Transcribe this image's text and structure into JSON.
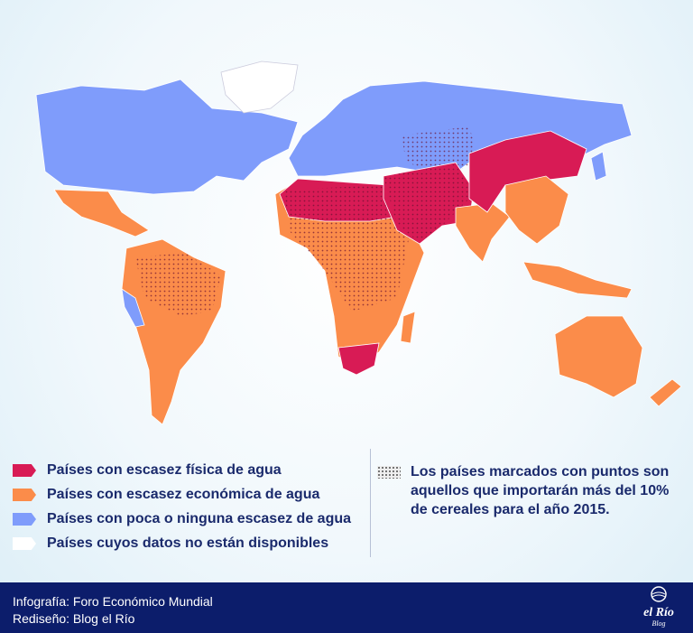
{
  "legend": {
    "items": [
      {
        "label": "Países con escasez física de agua",
        "color": "#d81b55"
      },
      {
        "label": "Países con escasez económica de agua",
        "color": "#fb8c4a"
      },
      {
        "label": "Países con poca o ninguna escasez de agua",
        "color": "#7f9cfb"
      },
      {
        "label": "Países cuyos datos no están disponibles",
        "color": "#ffffff"
      }
    ]
  },
  "note": "Los países marcados con puntos son aquellos que importarán más del 10% de cereales para el año 2015.",
  "footer": {
    "credits": [
      "Infografía: Foro Económico Mundial",
      "Rediseño: Blog el Río"
    ],
    "logo": {
      "title": "el Río",
      "subtitle": "Blog"
    }
  }
}
